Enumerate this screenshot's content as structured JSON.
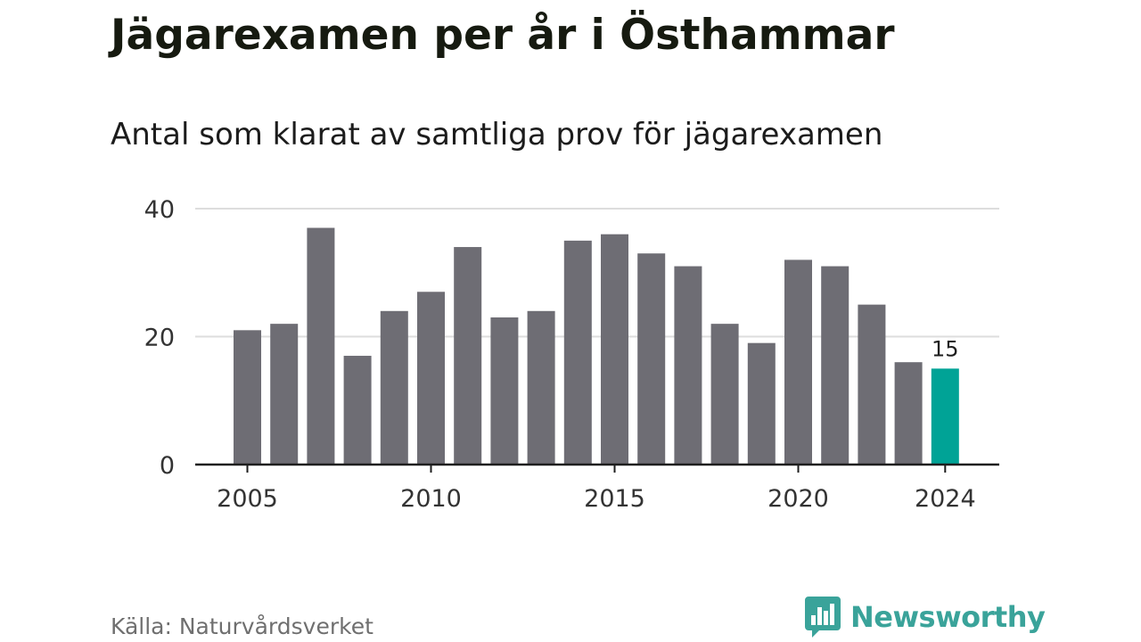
{
  "header": {
    "title": "Jägarexamen per år i Östhammar",
    "subtitle": "Antal som klarat av samtliga prov för jägarexamen"
  },
  "footer": {
    "source": "Källa: Naturvårdsverket",
    "brand_name": "Newsworthy",
    "brand_icon": "bar-chart-speech-bubble-icon"
  },
  "colors": {
    "bar": "#6e6d74",
    "highlight": "#00a396",
    "gridline": "#dddddd",
    "axis": "#1e1e1e",
    "brand": "#3aa39a"
  },
  "chart_data": {
    "type": "bar",
    "title": "Jägarexamen per år i Östhammar",
    "subtitle": "Antal som klarat av samtliga prov för jägarexamen",
    "xlabel": "",
    "ylabel": "",
    "categories": [
      2005,
      2006,
      2007,
      2008,
      2009,
      2010,
      2011,
      2012,
      2013,
      2014,
      2015,
      2016,
      2017,
      2018,
      2019,
      2020,
      2021,
      2022,
      2023,
      2024
    ],
    "values": [
      21,
      22,
      37,
      17,
      24,
      27,
      34,
      23,
      24,
      35,
      36,
      33,
      31,
      22,
      19,
      32,
      31,
      25,
      16,
      15
    ],
    "ylim": [
      0,
      40
    ],
    "yticks": [
      0,
      20,
      40
    ],
    "xticks": [
      2005,
      2010,
      2015,
      2020,
      2024
    ],
    "highlight": {
      "category": 2024,
      "label": "15"
    },
    "grid": true,
    "legend": "none"
  }
}
